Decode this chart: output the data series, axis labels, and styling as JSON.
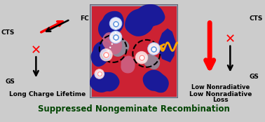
{
  "bg_color": "#f5f0c8",
  "fig_bg": "#cccccc",
  "title_text": "Suppressed Nongeminate Recombination",
  "title_bg": "#90ee90",
  "title_color": "#004400",
  "left_label": "Long Charge Lifetime",
  "right_label1": "Low Nonradiative",
  "right_label2": "Loss",
  "cts_label": "CTS",
  "gs_label": "GS",
  "fc_label": "FC",
  "red_donor": "#cc2233",
  "blue_acceptor": "#1a1a99",
  "pink_interface": "#cc6688",
  "gray_interface": "#8899aa",
  "orange_wave": "#FFA500"
}
